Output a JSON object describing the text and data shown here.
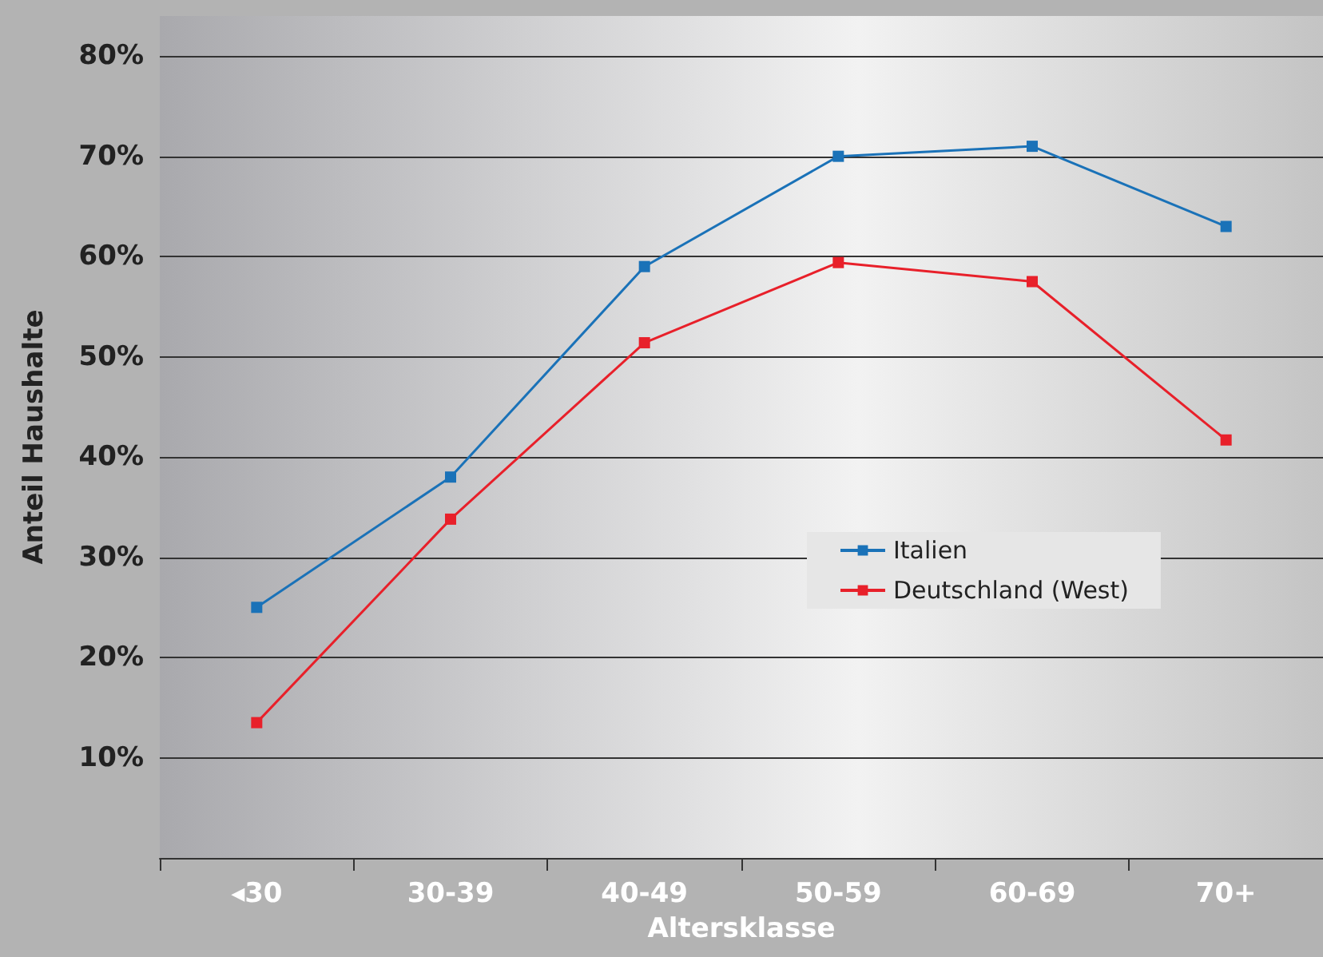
{
  "chart_data": {
    "type": "line",
    "xlabel": "Altersklasse",
    "ylabel": "Anteil Haushalte",
    "categories": [
      "◂30",
      "30-39",
      "40-49",
      "50-59",
      "60-69",
      "70+"
    ],
    "series": [
      {
        "name": "Italien",
        "color": "#1a72b8",
        "values": [
          25,
          38,
          59,
          70,
          71,
          63
        ]
      },
      {
        "name": "Deutschland (West)",
        "color": "#e8202a",
        "values": [
          13.5,
          33.8,
          51.4,
          59.4,
          57.5,
          41.7
        ]
      }
    ],
    "ylim": [
      0,
      84
    ],
    "yticks": [
      {
        "value": 10,
        "label": "10%"
      },
      {
        "value": 20,
        "label": "20%"
      },
      {
        "value": 30,
        "label": "30%"
      },
      {
        "value": 40,
        "label": "40%"
      },
      {
        "value": 50,
        "label": "50%"
      },
      {
        "value": 60,
        "label": "60%"
      },
      {
        "value": 70,
        "label": "70%"
      },
      {
        "value": 80,
        "label": "80%"
      }
    ],
    "grid": "y",
    "legend": "right",
    "marker": "square",
    "line_style": "solid"
  }
}
